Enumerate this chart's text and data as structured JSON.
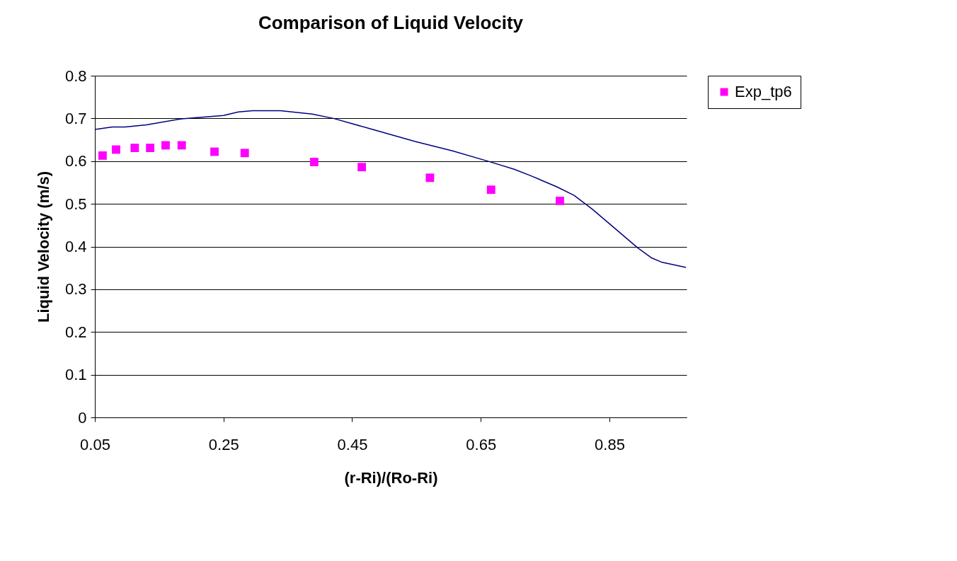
{
  "chart_data": {
    "type": "line",
    "title": "Comparison of Liquid Velocity",
    "xlabel": "(r-Ri)/(Ro-Ri)",
    "ylabel": "Liquid Velocity (m/s)",
    "xlim": [
      0.05,
      0.97
    ],
    "xticks": [
      0.05,
      0.25,
      0.45,
      0.65,
      0.85
    ],
    "ylim": [
      0,
      0.8
    ],
    "yticks": [
      0,
      0.1,
      0.2,
      0.3,
      0.4,
      0.5,
      0.6,
      0.7,
      0.8
    ],
    "grid": "y",
    "legend": "top right",
    "series": [
      {
        "color": "#000080",
        "line_style": "solid",
        "x": [
          0.05,
          0.077,
          0.097,
          0.13,
          0.185,
          0.25,
          0.273,
          0.295,
          0.339,
          0.388,
          0.421,
          0.482,
          0.548,
          0.606,
          0.663,
          0.702,
          0.729,
          0.768,
          0.795,
          0.823,
          0.855,
          0.894,
          0.916,
          0.932,
          0.969
        ],
        "values": [
          0.674,
          0.68,
          0.68,
          0.685,
          0.699,
          0.707,
          0.715,
          0.718,
          0.718,
          0.71,
          0.7,
          0.674,
          0.646,
          0.624,
          0.599,
          0.581,
          0.565,
          0.54,
          0.52,
          0.488,
          0.447,
          0.397,
          0.373,
          0.363,
          0.351
        ]
      },
      {
        "type": "scatter",
        "name": "Exp_tp6",
        "color": "#ff00ff",
        "marker": "square",
        "x": [
          0.062,
          0.083,
          0.112,
          0.136,
          0.16,
          0.185,
          0.236,
          0.283,
          0.391,
          0.465,
          0.571,
          0.666,
          0.773
        ],
        "values": [
          0.613,
          0.627,
          0.631,
          0.631,
          0.637,
          0.637,
          0.622,
          0.619,
          0.598,
          0.586,
          0.561,
          0.533,
          0.507
        ]
      }
    ]
  }
}
